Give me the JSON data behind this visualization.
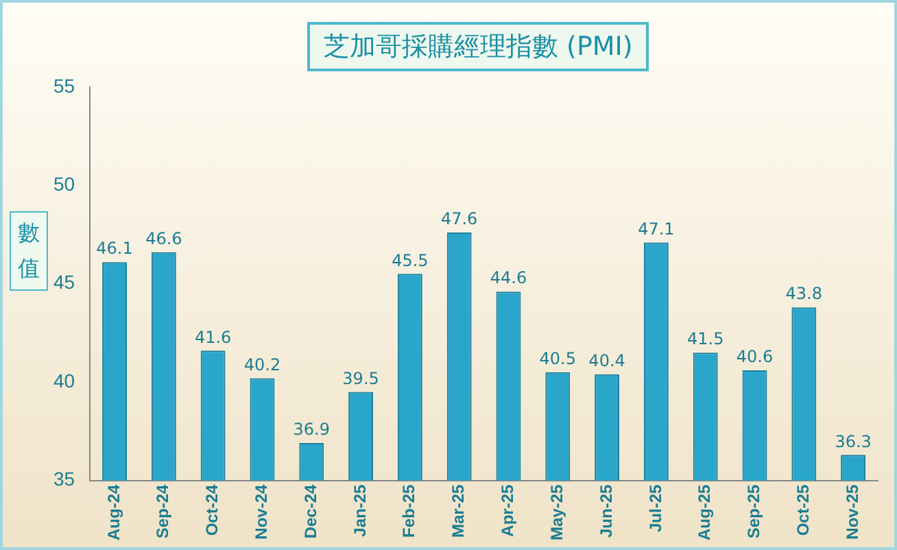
{
  "chart_data": {
    "type": "bar",
    "title": "芝加哥採購經理指數 (PMI)",
    "ylabel": "數值",
    "categories": [
      "Aug-24",
      "Sep-24",
      "Oct-24",
      "Nov-24",
      "Dec-24",
      "Jan-25",
      "Feb-25",
      "Mar-25",
      "Apr-25",
      "May-25",
      "Jun-25",
      "Jul-25",
      "Aug-25",
      "Sep-25",
      "Oct-25",
      "Nov-25"
    ],
    "values": [
      46.1,
      46.6,
      41.6,
      40.2,
      36.9,
      39.5,
      45.5,
      47.6,
      44.6,
      40.5,
      40.4,
      47.1,
      41.5,
      40.6,
      43.8,
      36.3
    ],
    "color": "#2ba6cb",
    "ylim": [
      35,
      55
    ],
    "yticks": [
      35,
      40,
      45,
      50,
      55
    ],
    "grid": false,
    "data_labels": true
  }
}
